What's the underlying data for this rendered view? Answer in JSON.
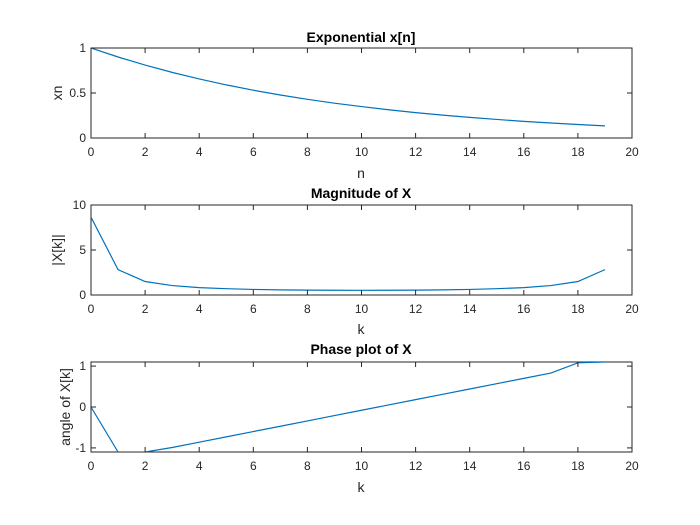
{
  "chart_data": [
    {
      "type": "line",
      "title": "Exponential x[n]",
      "xlabel": "n",
      "ylabel": "xn",
      "xlim": [
        0,
        20
      ],
      "ylim": [
        0,
        1
      ],
      "xticks": [
        "0",
        "2",
        "4",
        "6",
        "8",
        "10",
        "12",
        "14",
        "16",
        "18",
        "20"
      ],
      "yticks": [
        "0",
        "0.5",
        "1"
      ],
      "x": [
        0,
        1,
        2,
        3,
        4,
        5,
        6,
        7,
        8,
        9,
        10,
        11,
        12,
        13,
        14,
        15,
        16,
        17,
        18,
        19
      ],
      "values": [
        1.0,
        0.9,
        0.81,
        0.729,
        0.656,
        0.59,
        0.531,
        0.478,
        0.43,
        0.387,
        0.349,
        0.314,
        0.282,
        0.254,
        0.229,
        0.206,
        0.185,
        0.167,
        0.15,
        0.135
      ],
      "color": "#0072BD",
      "grid": false
    },
    {
      "type": "line",
      "title": "Magnitude of X",
      "xlabel": "k",
      "ylabel": "|X[k]|",
      "xlim": [
        0,
        20
      ],
      "ylim": [
        0,
        10
      ],
      "xticks": [
        "0",
        "2",
        "4",
        "6",
        "8",
        "10",
        "12",
        "14",
        "16",
        "18",
        "20"
      ],
      "yticks": [
        "0",
        "5",
        "10"
      ],
      "x": [
        0,
        1,
        2,
        3,
        4,
        5,
        6,
        7,
        8,
        9,
        10,
        11,
        12,
        13,
        14,
        15,
        16,
        17,
        18,
        19
      ],
      "values": [
        8.65,
        2.82,
        1.5,
        1.05,
        0.82,
        0.7,
        0.62,
        0.57,
        0.54,
        0.53,
        0.52,
        0.53,
        0.54,
        0.57,
        0.62,
        0.7,
        0.82,
        1.05,
        1.5,
        2.82
      ],
      "color": "#0072BD",
      "grid": false
    },
    {
      "type": "line",
      "title": "Phase plot of X",
      "xlabel": "k",
      "ylabel": "angle of X[k]",
      "xlim": [
        0,
        20
      ],
      "ylim": [
        -1.1,
        1.1
      ],
      "xticks": [
        "0",
        "2",
        "4",
        "6",
        "8",
        "10",
        "12",
        "14",
        "16",
        "18",
        "20"
      ],
      "yticks": [
        "-1",
        "0",
        "1"
      ],
      "x": [
        0,
        1,
        2,
        3,
        4,
        5,
        6,
        7,
        8,
        9,
        10,
        11,
        12,
        13,
        14,
        15,
        16,
        17,
        18,
        19
      ],
      "values": [
        0,
        -1.1,
        -1.1,
        -0.99,
        -0.86,
        -0.73,
        -0.6,
        -0.47,
        -0.34,
        -0.21,
        -0.08,
        0.05,
        0.18,
        0.31,
        0.44,
        0.57,
        0.7,
        0.83,
        1.08,
        1.1
      ],
      "color": "#0072BD",
      "grid": false
    }
  ]
}
